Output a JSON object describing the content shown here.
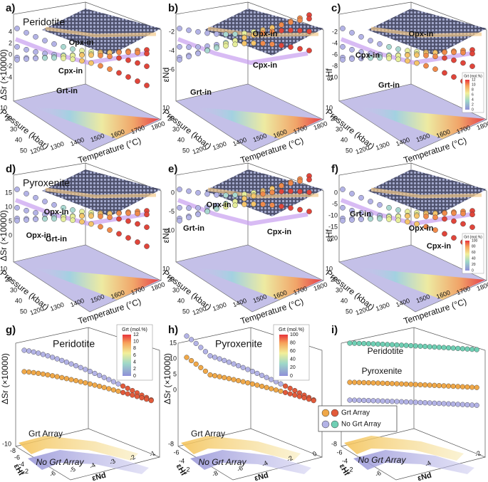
{
  "panels": [
    {
      "label": "a)",
      "title": "Peridotite",
      "z_label": "ΔSr (×10000)",
      "z_ticks": [
        "4",
        "2",
        "0",
        "-2",
        "-4"
      ],
      "annotations": [
        "Opx-in",
        "Cpx-in",
        "Grt-in"
      ],
      "pressure_label": "Pressure (kbar)",
      "pressure_ticks": [
        "10",
        "20",
        "30",
        "40",
        "50"
      ],
      "temperature_label": "Temperature (°C)",
      "temperature_ticks": [
        "1200",
        "1300",
        "1400",
        "1500",
        "1600",
        "1700",
        "1800"
      ]
    },
    {
      "label": "b)",
      "z_label": "εNd",
      "z_ticks": [
        "-2",
        "-4",
        "-6"
      ],
      "annotations": [
        "Opx-in",
        "Cpx-in",
        "Grt-in"
      ],
      "pressure_label": "Pressure (kbar)",
      "pressure_ticks": [
        "10",
        "20",
        "30",
        "40",
        "50"
      ],
      "temperature_label": "Temperature (°C)",
      "temperature_ticks": [
        "1200",
        "1300",
        "1400",
        "1500",
        "1600",
        "1700",
        "1800"
      ]
    },
    {
      "label": "c)",
      "z_label": "εHf",
      "z_ticks": [
        "-2",
        "-4",
        "-6",
        "-8",
        "-10"
      ],
      "annotations": [
        "Opx-in",
        "Cpx-in",
        "Grt-in"
      ],
      "pressure_label": "Pressure (kbar)",
      "pressure_ticks": [
        "10",
        "20",
        "30",
        "40",
        "50"
      ],
      "temperature_label": "Temperature (°C)",
      "temperature_ticks": [
        "1200",
        "1300",
        "1400",
        "1500",
        "1600",
        "1700",
        "1800"
      ],
      "colorbar": {
        "title": "Grt (mol.%)",
        "ticks": [
          "12",
          "10",
          "8",
          "6",
          "4",
          "2",
          "0"
        ]
      }
    },
    {
      "label": "d)",
      "title": "Pyroxenite",
      "z_label": "ΔSr (×10000)",
      "z_ticks": [
        "15",
        "10",
        "5",
        "0"
      ],
      "annotations": [
        "Opx-in",
        "Grt-in",
        "Opx-in"
      ],
      "pressure_label": "Pressure (kbar)",
      "pressure_ticks": [
        "10",
        "20",
        "30",
        "40",
        "50"
      ],
      "temperature_label": "Temperature (°C)",
      "temperature_ticks": [
        "1200",
        "1300",
        "1400",
        "1500",
        "1600",
        "1700",
        "1800"
      ]
    },
    {
      "label": "e)",
      "z_label": "εNd",
      "z_ticks": [
        "0",
        "-5",
        "-10"
      ],
      "annotations": [
        "Opx-in",
        "Grt-in",
        "Cpx-in"
      ],
      "pressure_label": "Pressure (kbar)",
      "pressure_ticks": [
        "10",
        "20",
        "30",
        "40",
        "50"
      ],
      "temperature_label": "Temperature (°C)",
      "temperature_ticks": [
        "1200",
        "1300",
        "1400",
        "1500",
        "1600",
        "1700",
        "1800"
      ]
    },
    {
      "label": "f)",
      "z_label": "εHf",
      "z_ticks": [
        "0",
        "-5",
        "-10",
        "-15",
        "-20"
      ],
      "annotations": [
        "Opx-in",
        "Grt-in",
        "Cpx-in"
      ],
      "pressure_label": "Pressure (kbar)",
      "pressure_ticks": [
        "10",
        "20",
        "30",
        "40",
        "50"
      ],
      "temperature_label": "Temperature (°C)",
      "temperature_ticks": [
        "1200",
        "1300",
        "1400",
        "1500",
        "1600",
        "1700",
        "1800"
      ],
      "colorbar": {
        "title": "Grt (mol.%)",
        "ticks": [
          "100",
          "80",
          "60",
          "40",
          "20",
          "0"
        ]
      }
    }
  ],
  "bottom_panels": [
    {
      "label": "g)",
      "title": "Peridotite",
      "z_label": "ΔSr (×10000)",
      "texts": [
        "Grt Array",
        "No Grt Array"
      ],
      "hf_label": "εHf",
      "hf_ticks": [
        "-10",
        "-8",
        "-6",
        "-4",
        "-2"
      ],
      "nd_label": "εNd",
      "nd_ticks": [
        "-6",
        "-5",
        "-4",
        "-3",
        "-2",
        "-1"
      ],
      "colorbar": {
        "title": "Grt (mol.%)",
        "ticks": [
          "12",
          "10",
          "8",
          "6",
          "4",
          "2",
          "0"
        ]
      }
    },
    {
      "label": "h)",
      "title": "Pyroxenite",
      "z_label": "ΔSr (×10000)",
      "z_ticks": [
        "15",
        "10",
        "5",
        "0"
      ],
      "texts": [
        "Grt Array",
        "No Grt Array"
      ],
      "hf_label": "εHf",
      "hf_ticks": [
        "-8",
        "-6",
        "-4",
        "-2"
      ],
      "nd_label": "εNd",
      "nd_ticks": [
        "-8",
        "-6",
        "-4",
        "-2",
        "0"
      ],
      "colorbar": {
        "title": "Grt (mol.%)",
        "ticks": [
          "100",
          "80",
          "60",
          "40",
          "20",
          "0"
        ]
      }
    },
    {
      "label": "i)",
      "texts": [
        "Peridotite",
        "Pyroxenite",
        "Grt Array",
        "No Grt Array"
      ],
      "legend": [
        "Grt Array",
        "No Grt Array"
      ],
      "hf_label": "εHf",
      "hf_ticks": [
        "-8",
        "-6",
        "-4",
        "-2"
      ],
      "nd_label": "εNd",
      "nd_ticks": [
        "-6",
        "-4",
        "-2"
      ]
    }
  ]
}
